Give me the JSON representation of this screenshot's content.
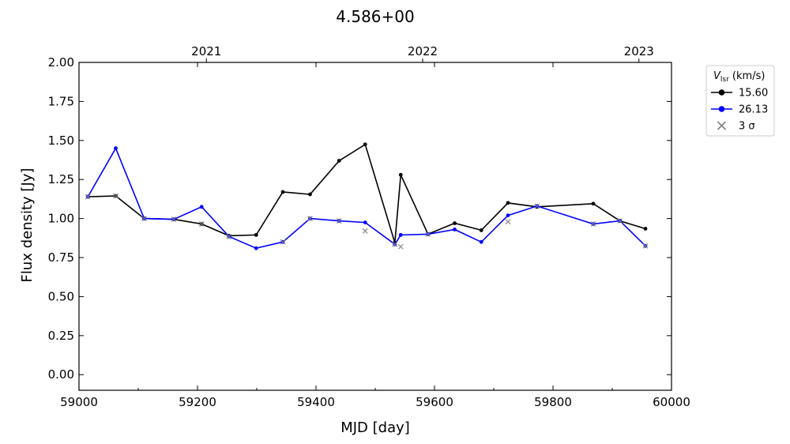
{
  "chart_data": {
    "type": "line",
    "title": "4.586+00",
    "xlabel": "MJD [day]",
    "ylabel": "Flux density [Jy]",
    "xlim": [
      59000,
      60000
    ],
    "ylim": [
      -0.1,
      2.0
    ],
    "xticks": [
      59000,
      59200,
      59400,
      59600,
      59800,
      60000
    ],
    "xtick_labels": [
      "59000",
      "59200",
      "59400",
      "59600",
      "59800",
      "60000"
    ],
    "yticks": [
      0.0,
      0.25,
      0.5,
      0.75,
      1.0,
      1.25,
      1.5,
      1.75,
      2.0
    ],
    "ytick_labels": [
      "0.00",
      "0.25",
      "0.50",
      "0.75",
      "1.00",
      "1.25",
      "1.50",
      "1.75",
      "2.00"
    ],
    "top_axis": {
      "ticks": [
        59215,
        59580,
        59945
      ],
      "labels": [
        "2021",
        "2022",
        "2023"
      ]
    },
    "legend": {
      "title": "V_lsr (km/s)",
      "title_main": "V",
      "title_sub": "lsr",
      "title_rest": " (km/s)",
      "placement": "outside top-right",
      "sigma_label": "3 σ",
      "sigma_color": "#808080"
    },
    "series": [
      {
        "name": "15.60",
        "color": "#000000",
        "x": [
          59015,
          59062,
          59110,
          59160,
          59207,
          59253,
          59299,
          59344,
          59390,
          59439,
          59483,
          59533,
          59543,
          59589,
          59634,
          59679,
          59724,
          59773,
          59868,
          59913,
          59956
        ],
        "y": [
          1.14,
          1.145,
          1.0,
          0.995,
          0.965,
          0.89,
          0.895,
          1.17,
          1.155,
          1.37,
          1.475,
          0.845,
          1.28,
          0.9,
          0.97,
          0.925,
          1.1,
          1.075,
          1.095,
          0.985,
          0.935
        ]
      },
      {
        "name": "26.13",
        "color": "#0000ff",
        "x": [
          59015,
          59062,
          59110,
          59160,
          59207,
          59253,
          59299,
          59344,
          59390,
          59439,
          59483,
          59533,
          59543,
          59589,
          59634,
          59679,
          59724,
          59773,
          59868,
          59913,
          59956
        ],
        "y": [
          1.14,
          1.45,
          1.0,
          0.995,
          1.075,
          0.885,
          0.81,
          0.85,
          1.0,
          0.985,
          0.975,
          0.835,
          0.895,
          0.9,
          0.93,
          0.85,
          1.02,
          1.08,
          0.965,
          0.985,
          0.825
        ]
      }
    ],
    "sigma_points": {
      "name": "3 σ",
      "x": [
        59015,
        59062,
        59110,
        59160,
        59207,
        59253,
        59344,
        59390,
        59439,
        59483,
        59533,
        59543,
        59589,
        59724,
        59773,
        59868,
        59913,
        59956
      ],
      "y": [
        1.14,
        1.145,
        1.0,
        0.995,
        0.965,
        0.885,
        0.85,
        1.0,
        0.985,
        0.92,
        0.835,
        0.82,
        0.9,
        0.98,
        1.08,
        0.965,
        0.985,
        0.825
      ]
    }
  }
}
